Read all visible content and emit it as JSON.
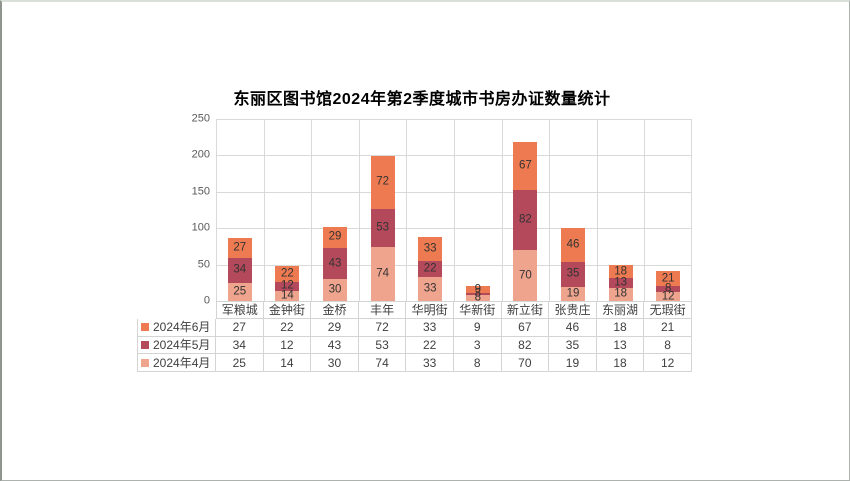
{
  "chart_data": {
    "type": "bar",
    "stacked": true,
    "title": "东丽区图书馆2024年第2季度城市书房办证数量统计",
    "categories": [
      "军粮城",
      "金钟街",
      "金桥",
      "丰年",
      "华明街",
      "华新街",
      "新立街",
      "张贵庄",
      "东丽湖",
      "无瑕街"
    ],
    "series": [
      {
        "key": "jun",
        "name": "2024年6月",
        "color": "#ED7A50",
        "values": [
          27,
          22,
          29,
          72,
          33,
          9,
          67,
          46,
          18,
          21
        ]
      },
      {
        "key": "may",
        "name": "2024年5月",
        "color": "#B3495B",
        "values": [
          34,
          12,
          43,
          53,
          22,
          3,
          82,
          35,
          13,
          8
        ]
      },
      {
        "key": "apr",
        "name": "2024年4月",
        "color": "#EFA48E",
        "values": [
          25,
          14,
          30,
          74,
          33,
          8,
          70,
          19,
          18,
          12
        ]
      }
    ],
    "stack_order_bottom_to_top": [
      "2024年4月",
      "2024年5月",
      "2024年6月"
    ],
    "ylim": [
      0,
      250
    ],
    "yticks": [
      0,
      50,
      100,
      150,
      200,
      250
    ],
    "grid": true,
    "legend_position": "data-table-left",
    "data_labels": true
  },
  "colors": {
    "gridline": "#D9D9D9",
    "table_border": "#D4D4D4",
    "bar_label_text": "#333333",
    "axis_text": "#595959",
    "table_text": "#404040",
    "title_text": "#000000"
  }
}
